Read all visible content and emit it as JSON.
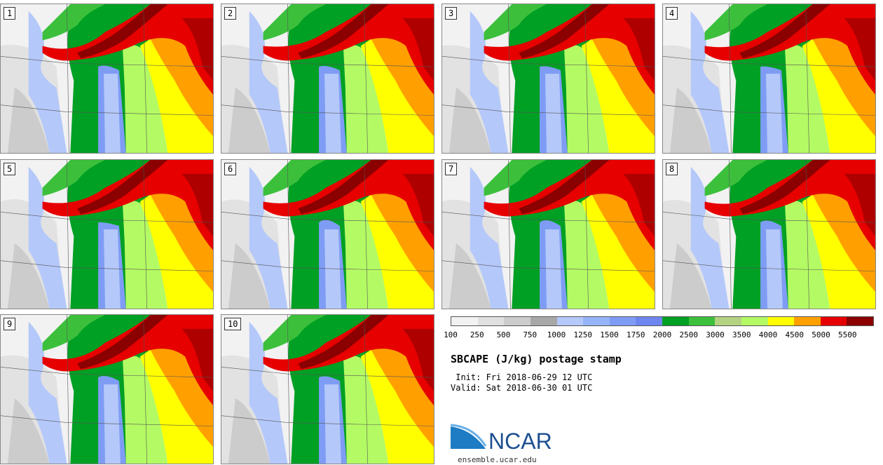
{
  "members": [
    "1",
    "2",
    "3",
    "4",
    "5",
    "6",
    "7",
    "8",
    "9",
    "10"
  ],
  "colorbar": {
    "colors": [
      "#f2f2f2",
      "#e0e0e0",
      "#cccccc",
      "#a8a8a8",
      "#b4c8fa",
      "#96b4fa",
      "#7f9cf5",
      "#6f86f0",
      "#00a024",
      "#3cc03c",
      "#b4d282",
      "#b4fa64",
      "#ffff00",
      "#ffa000",
      "#e60000",
      "#8b0000"
    ],
    "ticks": [
      "100",
      "250",
      "500",
      "750",
      "1000",
      "1250",
      "1500",
      "1750",
      "2000",
      "2500",
      "3000",
      "3500",
      "4000",
      "4500",
      "5000",
      "5500"
    ]
  },
  "title": "SBCAPE (J/kg) postage stamp",
  "init": " Init: Fri 2018-06-29 12 UTC",
  "valid": "Valid: Sat 2018-06-30 01 UTC",
  "logo": {
    "text": "NCAR",
    "url": "ensemble.ucar.edu",
    "color": "#1d4f91"
  }
}
